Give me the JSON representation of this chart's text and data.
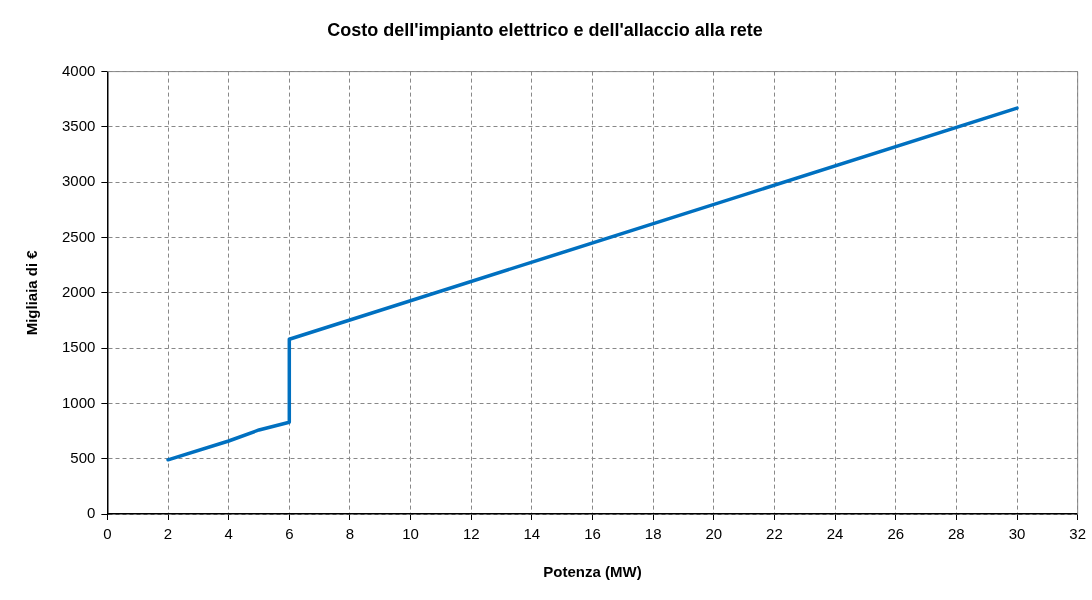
{
  "chart_data": {
    "type": "line",
    "title": "Costo dell'impianto elettrico e dell'allaccio alla rete",
    "xlabel": "Potenza (MW)",
    "ylabel": "Migliaia di €",
    "series": [
      {
        "color": "#0070c0",
        "x": [
          2,
          4,
          5,
          6,
          6,
          30
        ],
        "values": [
          490,
          660,
          760,
          830,
          1580,
          3670
        ]
      }
    ],
    "xlim": [
      0,
      32
    ],
    "xticks": [
      0,
      2,
      4,
      6,
      8,
      10,
      12,
      14,
      16,
      18,
      20,
      22,
      24,
      26,
      28,
      30,
      32
    ],
    "ylim": [
      0,
      4000
    ],
    "yticks": [
      0,
      500,
      1000,
      1500,
      2000,
      2500,
      3000,
      3500,
      4000
    ],
    "grid": true,
    "legend": false,
    "marker": "none",
    "line_style": "solid"
  }
}
